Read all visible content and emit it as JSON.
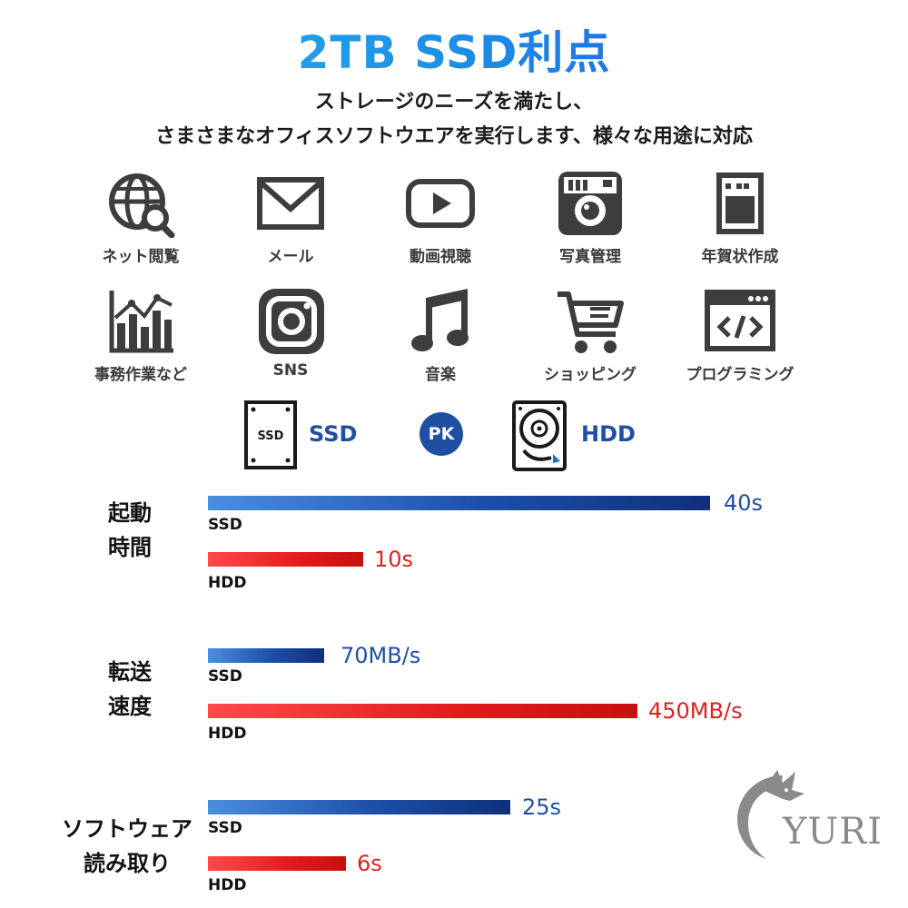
{
  "header": {
    "title": "2TB SSD利点",
    "subtitle_line1": "ストレージのニーズを満たし、",
    "subtitle_line2": "さまさまなオフィスソフトウエアを実行します、様々な用途に対応"
  },
  "uses": [
    {
      "label": "ネット閲覧",
      "icon": "globe-search-icon"
    },
    {
      "label": "メール",
      "icon": "mail-icon"
    },
    {
      "label": "動画視聴",
      "icon": "video-play-icon"
    },
    {
      "label": "写真管理",
      "icon": "camera-icon"
    },
    {
      "label": "年賀状作成",
      "icon": "card-icon"
    },
    {
      "label": "事務作業など",
      "icon": "chart-icon"
    },
    {
      "label": "SNS",
      "icon": "instagram-icon"
    },
    {
      "label": "音楽",
      "icon": "music-note-icon"
    },
    {
      "label": "ショッピング",
      "icon": "shopping-cart-icon"
    },
    {
      "label": "プログラミング",
      "icon": "code-window-icon"
    }
  ],
  "legend": {
    "ssd_icon_text": "SSD",
    "ssd_label": "SSD",
    "vs_badge": "PK",
    "hdd_label": "HDD"
  },
  "comparisons": [
    {
      "label_line1": "起動",
      "label_line2": "時間",
      "ssd": {
        "tag": "SSD",
        "value": "40s"
      },
      "hdd": {
        "tag": "HDD",
        "value": "10s"
      }
    },
    {
      "label_line1": "転送",
      "label_line2": "速度",
      "ssd": {
        "tag": "SSD",
        "value": "70MB/s"
      },
      "hdd": {
        "tag": "HDD",
        "value": "450MB/s"
      }
    },
    {
      "label_line1": "ソフトウェア",
      "label_line2": "読み取り",
      "ssd": {
        "tag": "SSD",
        "value": "25s"
      },
      "hdd": {
        "tag": "HDD",
        "value": "6s"
      }
    }
  ],
  "brand": {
    "logo_text": "YURI"
  },
  "colors": {
    "ssd_blue": "#1f4fa3",
    "hdd_red": "#e0201e",
    "icon_gray": "#3d3d3d"
  }
}
